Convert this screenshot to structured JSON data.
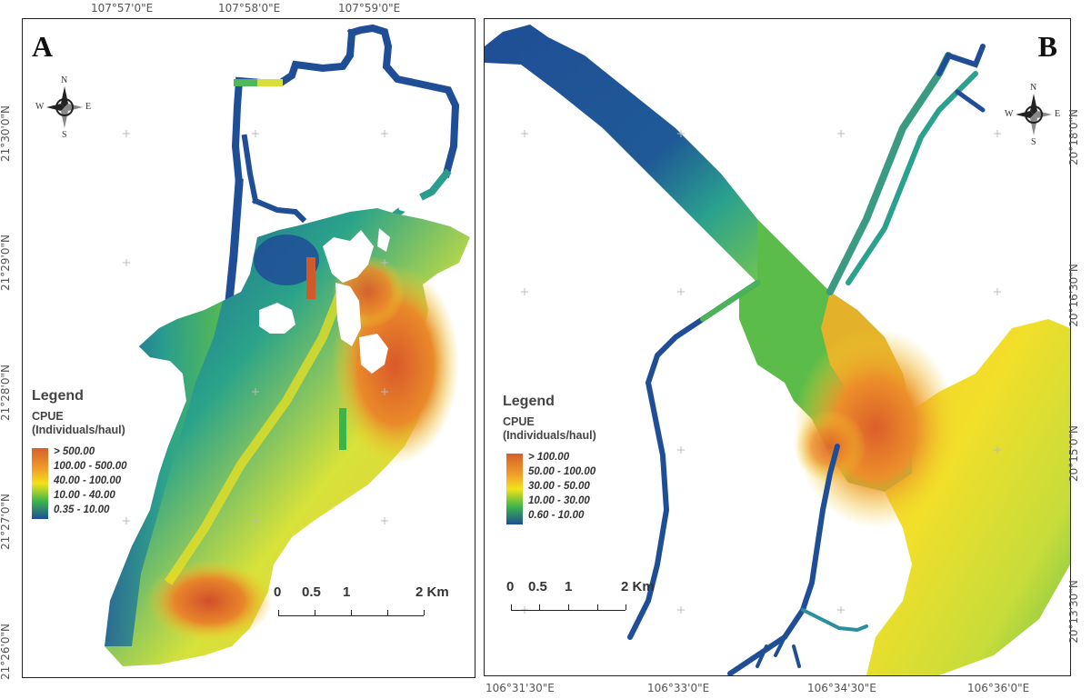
{
  "panel_a": {
    "letter": "A",
    "top_coords": [
      "107°57'0\"E",
      "107°58'0\"E",
      "107°59'0\"E"
    ],
    "left_coords": [
      "21°30'0\"N",
      "21°29'0\"N",
      "21°28'0\"N",
      "21°27'0\"N",
      "21°26'0\"N"
    ],
    "legend": {
      "title": "Legend",
      "subtitle_1": "CPUE",
      "subtitle_2": "(Individuals/haul)",
      "classes": [
        "> 500.00",
        "100.00 - 500.00",
        "40.00 - 100.00",
        "10.00 - 40.00",
        "0.35 - 10.00"
      ]
    },
    "scale": {
      "labels": [
        "0",
        "0.5",
        "1",
        "2 Km"
      ]
    },
    "compass": {
      "n": "N",
      "s": "S",
      "e": "E",
      "w": "W"
    }
  },
  "panel_b": {
    "letter": "B",
    "bottom_coords": [
      "106°31'30\"E",
      "106°33'0\"E",
      "106°34'30\"E",
      "106°36'0\"E"
    ],
    "right_coords": [
      "20°18'0\"N",
      "20°16'30\"N",
      "20°15'0\"N",
      "20°13'30\"N"
    ],
    "legend": {
      "title": "Legend",
      "subtitle_1": "CPUE",
      "subtitle_2": "(Individuals/haul)",
      "classes": [
        "> 100.00",
        "50.00 - 100.00",
        "30.00 - 50.00",
        "10.00 - 30.00",
        "0.60 - 10.00"
      ]
    },
    "scale": {
      "labels": [
        "0",
        "0.5",
        "1",
        "2 Km"
      ]
    },
    "compass": {
      "n": "N",
      "s": "S",
      "e": "E",
      "w": "W"
    }
  },
  "colors": {
    "class_high": "#d6602a",
    "class_mid_high": "#f0a02a",
    "class_mid": "#f2e21b",
    "class_mid_low": "#3bb54a",
    "class_low": "#1f4e96"
  }
}
